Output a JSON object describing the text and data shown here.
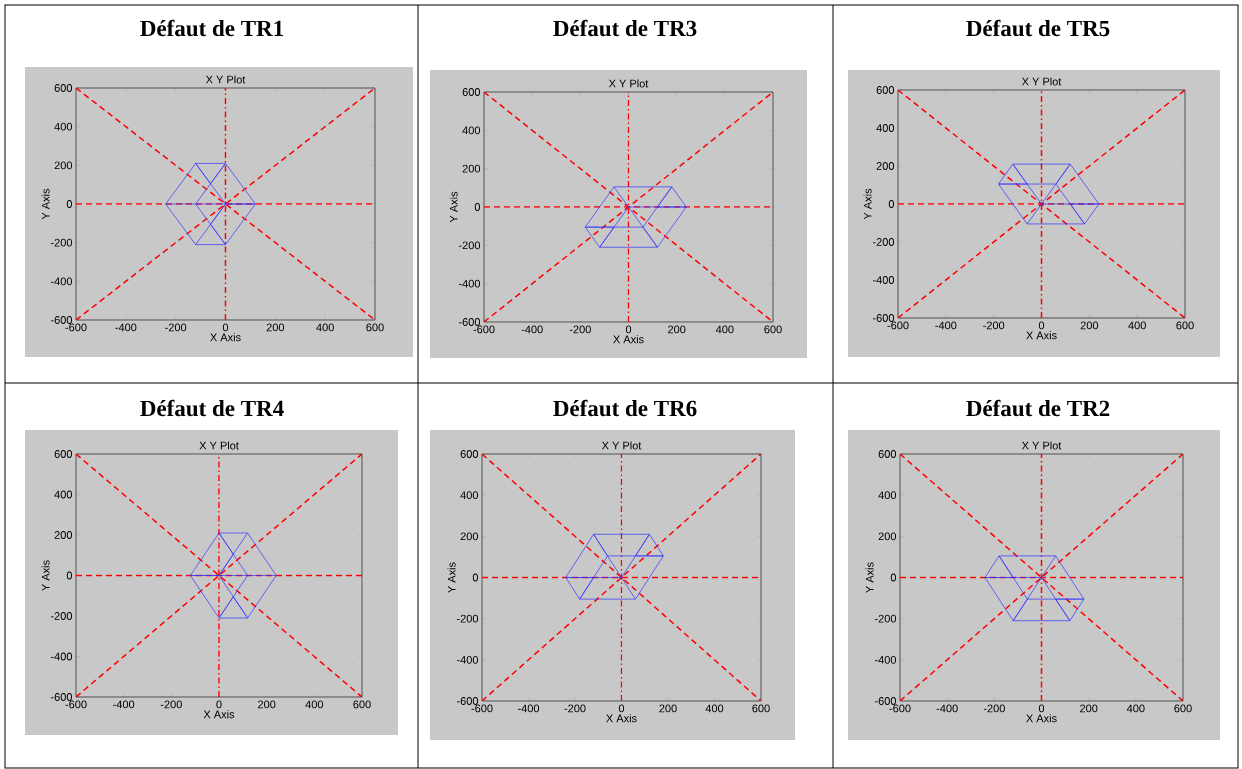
{
  "chart_data": [
    {
      "type": "line",
      "title": "Défaut de TR1",
      "subtitle": "X Y Plot",
      "xlabel": "X Axis",
      "ylabel": "Y Axis",
      "xlim": [
        -600,
        600
      ],
      "ylim": [
        -600,
        600
      ],
      "xticks": [
        -600,
        -400,
        -200,
        0,
        200,
        400,
        600
      ],
      "yticks": [
        -600,
        -400,
        -200,
        0,
        200,
        400,
        600
      ],
      "ref_lines": [
        {
          "axis": "y",
          "value": 0,
          "color": "#ff0000",
          "line_style": "dashed"
        },
        {
          "axis": "x",
          "value": 0,
          "color": "#ff0000",
          "line_style": "dashdot"
        }
      ],
      "series": [
        {
          "color": "#ff0000",
          "line_style": "dashed",
          "x": [
            -600,
            600
          ],
          "values": [
            -600,
            600
          ]
        },
        {
          "color": "#ff0000",
          "line_style": "dashed",
          "x": [
            -600,
            600
          ],
          "values": [
            600,
            -600
          ]
        },
        {
          "color": "#3333ff",
          "line_style": "solid",
          "x": [
            -240,
            -120,
            0,
            120,
            0,
            -120,
            -240,
            -120,
            0,
            120,
            0,
            -60,
            -120,
            -60,
            0,
            -60,
            -120,
            -60,
            0,
            -60,
            0,
            -60,
            -120
          ],
          "values": [
            0,
            210,
            210,
            0,
            -210,
            -210,
            0,
            0,
            0,
            0,
            0,
            105,
            210,
            105,
            210,
            105,
            0,
            -105,
            -210,
            -105,
            0,
            -105,
            -210
          ]
        }
      ]
    },
    {
      "type": "line",
      "title": "Défaut de TR3",
      "subtitle": "X Y Plot",
      "xlabel": "X Axis",
      "ylabel": "Y Axis",
      "xlim": [
        -600,
        600
      ],
      "ylim": [
        -600,
        600
      ],
      "xticks": [
        -600,
        -400,
        -200,
        0,
        200,
        400,
        600
      ],
      "yticks": [
        -600,
        -400,
        -200,
        0,
        200,
        400,
        600
      ],
      "ref_lines": [
        {
          "axis": "y",
          "value": 0,
          "color": "#ff0000",
          "line_style": "dashed"
        },
        {
          "axis": "x",
          "value": 0,
          "color": "#ff0000",
          "line_style": "dashdot"
        }
      ],
      "series": [
        {
          "color": "#ff0000",
          "line_style": "dashed",
          "x": [
            -600,
            600
          ],
          "values": [
            -600,
            600
          ]
        },
        {
          "color": "#ff0000",
          "line_style": "dashed",
          "x": [
            -600,
            600
          ],
          "values": [
            600,
            -600
          ]
        },
        {
          "color": "#3333ff",
          "line_style": "solid",
          "x": [
            -60,
            180,
            240,
            120,
            -120,
            -180,
            -60,
            0,
            120,
            240,
            120,
            180,
            120,
            60,
            120,
            60,
            0,
            -60,
            -120,
            -60,
            -180,
            -60,
            60
          ],
          "values": [
            105,
            105,
            0,
            -210,
            -210,
            -105,
            105,
            0,
            0,
            0,
            0,
            105,
            0,
            -105,
            -210,
            -105,
            0,
            -105,
            -210,
            -105,
            -105,
            -105,
            -105
          ]
        }
      ]
    },
    {
      "type": "line",
      "title": "Défaut de TR5",
      "subtitle": "X Y Plot",
      "xlabel": "X Axis",
      "ylabel": "Y Axis",
      "xlim": [
        -600,
        600
      ],
      "ylim": [
        -600,
        600
      ],
      "xticks": [
        -600,
        -400,
        -200,
        0,
        200,
        400,
        600
      ],
      "yticks": [
        -600,
        -400,
        -200,
        0,
        200,
        400,
        600
      ],
      "ref_lines": [
        {
          "axis": "y",
          "value": 0,
          "color": "#ff0000",
          "line_style": "dashed"
        },
        {
          "axis": "x",
          "value": 0,
          "color": "#ff0000",
          "line_style": "dashdot"
        }
      ],
      "series": [
        {
          "color": "#ff0000",
          "line_style": "dashed",
          "x": [
            -600,
            600
          ],
          "values": [
            -600,
            600
          ]
        },
        {
          "color": "#ff0000",
          "line_style": "dashed",
          "x": [
            -600,
            600
          ],
          "values": [
            600,
            -600
          ]
        },
        {
          "color": "#3333ff",
          "line_style": "solid",
          "x": [
            -60,
            180,
            240,
            120,
            -120,
            -180,
            -60,
            0,
            120,
            240,
            120,
            180,
            120,
            60,
            120,
            60,
            0,
            -60,
            -120,
            -60,
            -180,
            -60,
            60
          ],
          "values": [
            -105,
            -105,
            0,
            210,
            210,
            105,
            -105,
            0,
            0,
            0,
            0,
            -105,
            0,
            105,
            210,
            105,
            0,
            105,
            210,
            105,
            105,
            105,
            105
          ]
        }
      ]
    },
    {
      "type": "line",
      "title": "Défaut de TR4",
      "subtitle": "X Y Plot",
      "xlabel": "X Axis",
      "ylabel": "Y Axis",
      "xlim": [
        -600,
        600
      ],
      "ylim": [
        -600,
        600
      ],
      "xticks": [
        -600,
        -400,
        -200,
        0,
        200,
        400,
        600
      ],
      "yticks": [
        -600,
        -400,
        -200,
        0,
        200,
        400,
        600
      ],
      "ref_lines": [
        {
          "axis": "y",
          "value": 0,
          "color": "#ff0000",
          "line_style": "dashed"
        },
        {
          "axis": "x",
          "value": 0,
          "color": "#ff0000",
          "line_style": "dashdot"
        }
      ],
      "series": [
        {
          "color": "#ff0000",
          "line_style": "dashed",
          "x": [
            -600,
            600
          ],
          "values": [
            -600,
            600
          ]
        },
        {
          "color": "#ff0000",
          "line_style": "dashed",
          "x": [
            -600,
            600
          ],
          "values": [
            600,
            -600
          ]
        },
        {
          "color": "#3333ff",
          "line_style": "solid",
          "x": [
            240,
            120,
            0,
            -120,
            0,
            120,
            240,
            120,
            0,
            -120,
            0,
            60,
            120,
            60,
            0,
            60,
            120,
            60,
            0,
            60,
            0,
            60,
            120
          ],
          "values": [
            0,
            -210,
            -210,
            0,
            210,
            210,
            0,
            0,
            0,
            0,
            0,
            -105,
            -210,
            -105,
            -210,
            -105,
            0,
            105,
            210,
            105,
            0,
            105,
            210
          ]
        }
      ]
    },
    {
      "type": "line",
      "title": "Défaut de TR6",
      "subtitle": "X Y Plot",
      "xlabel": "X Axis",
      "ylabel": "Y Axis",
      "xlim": [
        -600,
        600
      ],
      "ylim": [
        -600,
        600
      ],
      "xticks": [
        -600,
        -400,
        -200,
        0,
        200,
        400,
        600
      ],
      "yticks": [
        -600,
        -400,
        -200,
        0,
        200,
        400,
        600
      ],
      "ref_lines": [
        {
          "axis": "y",
          "value": 0,
          "color": "#ff0000",
          "line_style": "dashed"
        },
        {
          "axis": "x",
          "value": 0,
          "color": "#ff0000",
          "line_style": "dashdot"
        }
      ],
      "series": [
        {
          "color": "#ff0000",
          "line_style": "dashed",
          "x": [
            -600,
            600
          ],
          "values": [
            -600,
            600
          ]
        },
        {
          "color": "#ff0000",
          "line_style": "dashed",
          "x": [
            -600,
            600
          ],
          "values": [
            600,
            -600
          ]
        },
        {
          "color": "#3333ff",
          "line_style": "solid",
          "x": [
            60,
            -180,
            -240,
            -120,
            120,
            180,
            60,
            0,
            -120,
            -240,
            -120,
            -180,
            -120,
            -60,
            -120,
            -60,
            0,
            60,
            120,
            60,
            180,
            60,
            -60
          ],
          "values": [
            -105,
            -105,
            0,
            210,
            210,
            105,
            -105,
            0,
            0,
            0,
            0,
            -105,
            0,
            105,
            210,
            105,
            0,
            105,
            210,
            105,
            105,
            105,
            105
          ]
        }
      ]
    },
    {
      "type": "line",
      "title": "Défaut de TR2",
      "subtitle": "X Y Plot",
      "xlabel": "X Axis",
      "ylabel": "Y Axis",
      "xlim": [
        -600,
        600
      ],
      "ylim": [
        -600,
        600
      ],
      "xticks": [
        -600,
        -400,
        -200,
        0,
        200,
        400,
        600
      ],
      "yticks": [
        -600,
        -400,
        -200,
        0,
        200,
        400,
        600
      ],
      "ref_lines": [
        {
          "axis": "y",
          "value": 0,
          "color": "#ff0000",
          "line_style": "dashed"
        },
        {
          "axis": "x",
          "value": 0,
          "color": "#ff0000",
          "line_style": "dashdot"
        }
      ],
      "series": [
        {
          "color": "#ff0000",
          "line_style": "dashed",
          "x": [
            -600,
            600
          ],
          "values": [
            -600,
            600
          ]
        },
        {
          "color": "#ff0000",
          "line_style": "dashed",
          "x": [
            -600,
            600
          ],
          "values": [
            600,
            -600
          ]
        },
        {
          "color": "#3333ff",
          "line_style": "solid",
          "x": [
            60,
            -180,
            -240,
            -120,
            120,
            180,
            60,
            0,
            -120,
            -240,
            -120,
            -180,
            -120,
            -60,
            -120,
            -60,
            0,
            60,
            120,
            60,
            180,
            60,
            -60
          ],
          "values": [
            105,
            105,
            0,
            -210,
            -210,
            -105,
            105,
            0,
            0,
            0,
            0,
            105,
            0,
            -105,
            -210,
            -105,
            0,
            -105,
            -210,
            -105,
            -105,
            -105,
            -105
          ]
        }
      ]
    }
  ]
}
